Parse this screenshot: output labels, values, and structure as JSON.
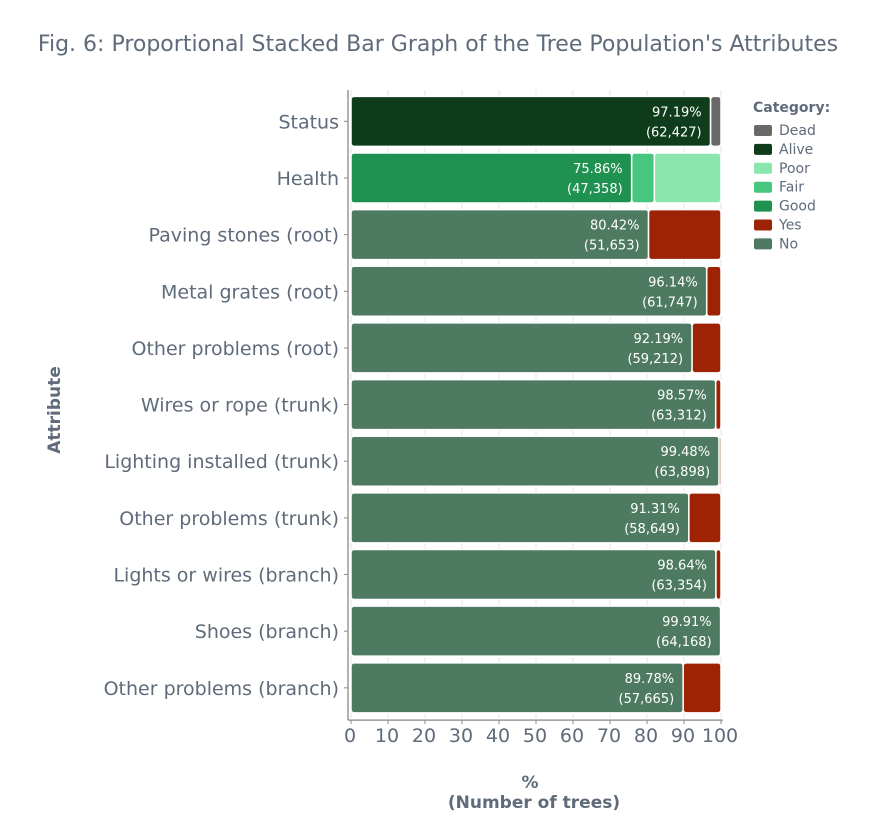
{
  "chart_data": {
    "type": "bar",
    "orientation": "horizontal",
    "stacked": true,
    "title": "Fig. 6: Proportional Stacked Bar Graph of the Tree Population's Attributes",
    "xlabel_line1": "%",
    "xlabel_line2": "(Number of trees)",
    "ylabel": "Attribute",
    "xlim": [
      0,
      100
    ],
    "xticks": [
      "0",
      "10",
      "20",
      "30",
      "40",
      "50",
      "60",
      "70",
      "80",
      "90",
      "100"
    ],
    "grid": true,
    "legend_title": "Category:",
    "legend_position": "top-right",
    "legend": [
      {
        "name": "Dead",
        "color": "#696969"
      },
      {
        "name": "Alive",
        "color": "#0f3d1c"
      },
      {
        "name": "Poor",
        "color": "#89e6ad"
      },
      {
        "name": "Fair",
        "color": "#47c67f"
      },
      {
        "name": "Good",
        "color": "#1f9150"
      },
      {
        "name": "Yes",
        "color": "#9e2305"
      },
      {
        "name": "No",
        "color": "#4e7a62"
      }
    ],
    "bars": [
      {
        "category": "Status",
        "label_pct": "97.19%",
        "label_count": "(62,427)",
        "segments": [
          {
            "name": "Alive",
            "value": 97.19,
            "color": "#0f3d1c"
          },
          {
            "name": "Dead",
            "value": 2.81,
            "color": "#696969"
          }
        ]
      },
      {
        "category": "Health",
        "label_pct": "75.86%",
        "label_count": "(47,358)",
        "segments": [
          {
            "name": "Good",
            "value": 75.86,
            "color": "#1f9150"
          },
          {
            "name": "Fair",
            "value": 6.14,
            "color": "#47c67f"
          },
          {
            "name": "Poor",
            "value": 18.0,
            "color": "#89e6ad"
          }
        ]
      },
      {
        "category": "Paving stones (root)",
        "label_pct": "80.42%",
        "label_count": "(51,653)",
        "segments": [
          {
            "name": "No",
            "value": 80.42,
            "color": "#4e7a62"
          },
          {
            "name": "Yes",
            "value": 19.58,
            "color": "#9e2305"
          }
        ]
      },
      {
        "category": "Metal grates (root)",
        "label_pct": "96.14%",
        "label_count": "(61,747)",
        "segments": [
          {
            "name": "No",
            "value": 96.14,
            "color": "#4e7a62"
          },
          {
            "name": "Yes",
            "value": 3.86,
            "color": "#9e2305"
          }
        ]
      },
      {
        "category": "Other problems (root)",
        "label_pct": "92.19%",
        "label_count": "(59,212)",
        "segments": [
          {
            "name": "No",
            "value": 92.19,
            "color": "#4e7a62"
          },
          {
            "name": "Yes",
            "value": 7.81,
            "color": "#9e2305"
          }
        ]
      },
      {
        "category": "Wires or rope (trunk)",
        "label_pct": "98.57%",
        "label_count": "(63,312)",
        "segments": [
          {
            "name": "No",
            "value": 98.57,
            "color": "#4e7a62"
          },
          {
            "name": "Yes",
            "value": 1.43,
            "color": "#9e2305"
          }
        ]
      },
      {
        "category": "Lighting installed (trunk)",
        "label_pct": "99.48%",
        "label_count": "(63,898)",
        "segments": [
          {
            "name": "No",
            "value": 99.48,
            "color": "#4e7a62"
          },
          {
            "name": "Yes",
            "value": 0.52,
            "color": "#9e2305"
          }
        ]
      },
      {
        "category": "Other problems (trunk)",
        "label_pct": "91.31%",
        "label_count": "(58,649)",
        "segments": [
          {
            "name": "No",
            "value": 91.31,
            "color": "#4e7a62"
          },
          {
            "name": "Yes",
            "value": 8.69,
            "color": "#9e2305"
          }
        ]
      },
      {
        "category": "Lights or wires (branch)",
        "label_pct": "98.64%",
        "label_count": "(63,354)",
        "segments": [
          {
            "name": "No",
            "value": 98.64,
            "color": "#4e7a62"
          },
          {
            "name": "Yes",
            "value": 1.36,
            "color": "#9e2305"
          }
        ]
      },
      {
        "category": "Shoes (branch)",
        "label_pct": "99.91%",
        "label_count": "(64,168)",
        "segments": [
          {
            "name": "No",
            "value": 99.91,
            "color": "#4e7a62"
          },
          {
            "name": "Yes",
            "value": 0.09,
            "color": "#9e2305"
          }
        ]
      },
      {
        "category": "Other problems (branch)",
        "label_pct": "89.78%",
        "label_count": "(57,665)",
        "segments": [
          {
            "name": "No",
            "value": 89.78,
            "color": "#4e7a62"
          },
          {
            "name": "Yes",
            "value": 10.22,
            "color": "#9e2305"
          }
        ]
      }
    ]
  }
}
